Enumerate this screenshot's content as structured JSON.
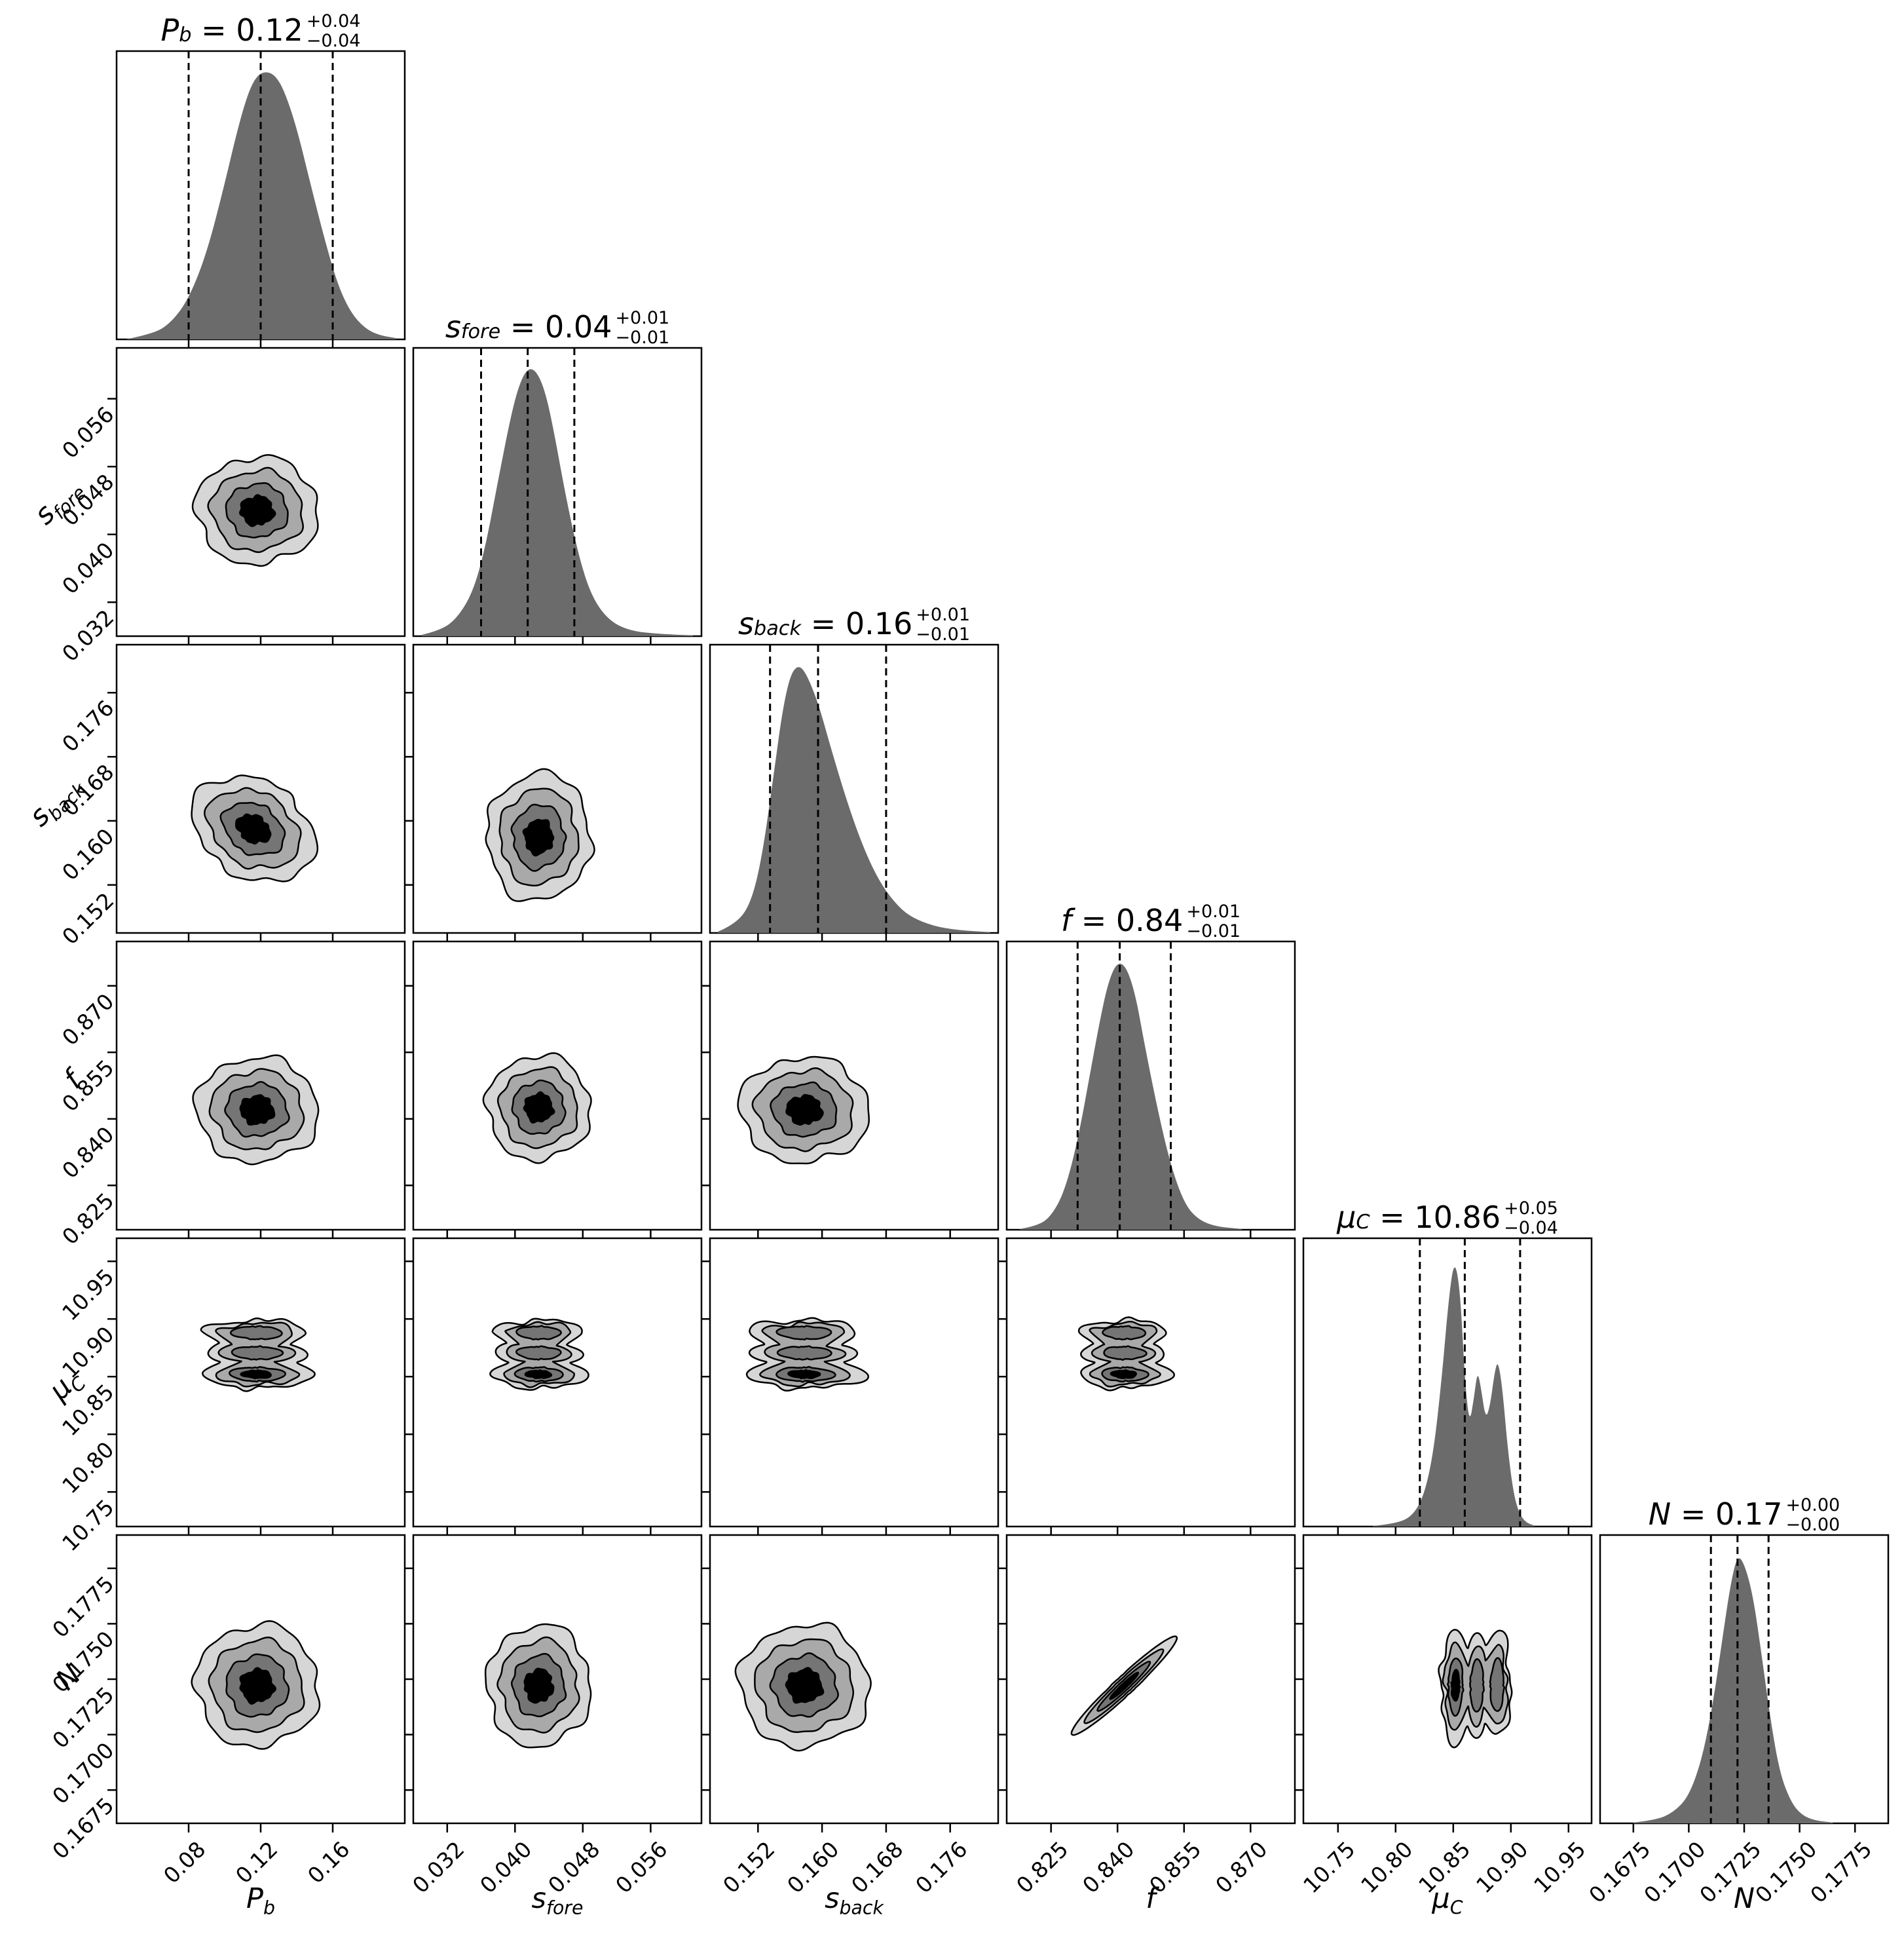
{
  "figure": {
    "kind": "mcmc-corner-plot",
    "background": "#ffffff"
  },
  "styles": {
    "hist_fill": "#6b6b6b",
    "contour_fills": [
      "#d6d6d6",
      "#a9a9a9",
      "#757575",
      "#000000"
    ],
    "contour_stroke": "#000000",
    "axis_color": "#000000"
  },
  "chart_data": {
    "type": "corner",
    "grid": 6,
    "parameters": [
      {
        "id": "P_b",
        "label": {
          "main": "P",
          "sub": "b"
        },
        "title": {
          "value": "0.12",
          "plus": "+0.04",
          "minus": "−0.04",
          "equals": "="
        },
        "range": [
          0.04,
          0.2
        ],
        "ticks": [
          {
            "v": 0.08,
            "label": "0.08"
          },
          {
            "v": 0.12,
            "label": "0.12"
          },
          {
            "v": 0.16,
            "label": "0.16"
          }
        ],
        "quantiles": [
          0.08,
          0.12,
          0.16
        ],
        "hist": [
          [
            0.045,
            0
          ],
          [
            0.06,
            0.02
          ],
          [
            0.07,
            0.06
          ],
          [
            0.08,
            0.15
          ],
          [
            0.09,
            0.32
          ],
          [
            0.1,
            0.58
          ],
          [
            0.107,
            0.78
          ],
          [
            0.113,
            0.92
          ],
          [
            0.118,
            0.985
          ],
          [
            0.123,
            1.0
          ],
          [
            0.128,
            0.985
          ],
          [
            0.133,
            0.93
          ],
          [
            0.14,
            0.79
          ],
          [
            0.148,
            0.57
          ],
          [
            0.156,
            0.36
          ],
          [
            0.163,
            0.2
          ],
          [
            0.17,
            0.1
          ],
          [
            0.178,
            0.04
          ],
          [
            0.186,
            0.015
          ],
          [
            0.195,
            0.005
          ]
        ]
      },
      {
        "id": "s_fore",
        "label": {
          "main": "s",
          "sub": "fore"
        },
        "title": {
          "value": "0.04",
          "plus": "+0.01",
          "minus": "−0.01",
          "equals": "="
        },
        "range": [
          0.028,
          0.062
        ],
        "ticks": [
          {
            "v": 0.032,
            "label": "0.032"
          },
          {
            "v": 0.04,
            "label": "0.040"
          },
          {
            "v": 0.048,
            "label": "0.048"
          },
          {
            "v": 0.056,
            "label": "0.056"
          }
        ],
        "quantiles": [
          0.036,
          0.0415,
          0.047
        ],
        "hist": [
          [
            0.029,
            0.005
          ],
          [
            0.031,
            0.02
          ],
          [
            0.033,
            0.06
          ],
          [
            0.035,
            0.16
          ],
          [
            0.0365,
            0.33
          ],
          [
            0.038,
            0.58
          ],
          [
            0.0395,
            0.82
          ],
          [
            0.0405,
            0.94
          ],
          [
            0.0415,
            1.0
          ],
          [
            0.0425,
            0.99
          ],
          [
            0.0435,
            0.92
          ],
          [
            0.0445,
            0.78
          ],
          [
            0.046,
            0.52
          ],
          [
            0.0475,
            0.3
          ],
          [
            0.049,
            0.15
          ],
          [
            0.051,
            0.06
          ],
          [
            0.0535,
            0.02
          ],
          [
            0.057,
            0.008
          ],
          [
            0.061,
            0.003
          ]
        ]
      },
      {
        "id": "s_back",
        "label": {
          "main": "s",
          "sub": "back"
        },
        "title": {
          "value": "0.16",
          "plus": "+0.01",
          "minus": "−0.01",
          "equals": "="
        },
        "range": [
          0.146,
          0.182
        ],
        "ticks": [
          {
            "v": 0.152,
            "label": "0.152"
          },
          {
            "v": 0.16,
            "label": "0.160"
          },
          {
            "v": 0.168,
            "label": "0.168"
          },
          {
            "v": 0.176,
            "label": "0.176"
          }
        ],
        "quantiles": [
          0.1535,
          0.1595,
          0.168
        ],
        "hist": [
          [
            0.147,
            0.005
          ],
          [
            0.149,
            0.03
          ],
          [
            0.151,
            0.1
          ],
          [
            0.1525,
            0.28
          ],
          [
            0.154,
            0.6
          ],
          [
            0.155,
            0.82
          ],
          [
            0.156,
            0.96
          ],
          [
            0.157,
            1.0
          ],
          [
            0.158,
            0.97
          ],
          [
            0.1595,
            0.86
          ],
          [
            0.161,
            0.7
          ],
          [
            0.163,
            0.5
          ],
          [
            0.165,
            0.33
          ],
          [
            0.167,
            0.2
          ],
          [
            0.169,
            0.115
          ],
          [
            0.171,
            0.06
          ],
          [
            0.174,
            0.025
          ],
          [
            0.177,
            0.01
          ],
          [
            0.181,
            0.003
          ]
        ]
      },
      {
        "id": "f",
        "label": {
          "main": "f",
          "sub": ""
        },
        "title": {
          "value": "0.84",
          "plus": "+0.01",
          "minus": "−0.01",
          "equals": "="
        },
        "range": [
          0.815,
          0.88
        ],
        "ticks": [
          {
            "v": 0.825,
            "label": "0.825"
          },
          {
            "v": 0.84,
            "label": "0.840"
          },
          {
            "v": 0.855,
            "label": "0.855"
          },
          {
            "v": 0.87,
            "label": "0.870"
          }
        ],
        "quantiles": [
          0.831,
          0.8405,
          0.852
        ],
        "hist": [
          [
            0.818,
            0.003
          ],
          [
            0.822,
            0.015
          ],
          [
            0.825,
            0.05
          ],
          [
            0.828,
            0.14
          ],
          [
            0.831,
            0.33
          ],
          [
            0.834,
            0.6
          ],
          [
            0.836,
            0.78
          ],
          [
            0.838,
            0.93
          ],
          [
            0.84,
            1.0
          ],
          [
            0.842,
            0.98
          ],
          [
            0.844,
            0.88
          ],
          [
            0.846,
            0.7
          ],
          [
            0.849,
            0.45
          ],
          [
            0.852,
            0.24
          ],
          [
            0.855,
            0.1
          ],
          [
            0.858,
            0.04
          ],
          [
            0.862,
            0.012
          ],
          [
            0.868,
            0.003
          ]
        ]
      },
      {
        "id": "mu_C",
        "label": {
          "main": "μ",
          "sub": "C"
        },
        "title": {
          "value": "10.86",
          "plus": "+0.05",
          "minus": "−0.04",
          "equals": "="
        },
        "range": [
          10.72,
          10.97
        ],
        "ticks": [
          {
            "v": 10.75,
            "label": "10.75"
          },
          {
            "v": 10.8,
            "label": "10.80"
          },
          {
            "v": 10.85,
            "label": "10.85"
          },
          {
            "v": 10.9,
            "label": "10.90"
          },
          {
            "v": 10.95,
            "label": "10.95"
          }
        ],
        "quantiles": [
          10.821,
          10.86,
          10.908
        ],
        "hist": [
          [
            10.78,
            0.002
          ],
          [
            10.8,
            0.01
          ],
          [
            10.815,
            0.04
          ],
          [
            10.825,
            0.12
          ],
          [
            10.833,
            0.28
          ],
          [
            10.84,
            0.55
          ],
          [
            10.846,
            0.85
          ],
          [
            10.851,
            1.0
          ],
          [
            10.856,
            0.88
          ],
          [
            10.86,
            0.55
          ],
          [
            10.864,
            0.38
          ],
          [
            10.868,
            0.48
          ],
          [
            10.871,
            0.58
          ],
          [
            10.874,
            0.52
          ],
          [
            10.878,
            0.4
          ],
          [
            10.882,
            0.45
          ],
          [
            10.886,
            0.58
          ],
          [
            10.889,
            0.62
          ],
          [
            10.893,
            0.5
          ],
          [
            10.897,
            0.3
          ],
          [
            10.902,
            0.13
          ],
          [
            10.907,
            0.05
          ],
          [
            10.913,
            0.015
          ],
          [
            10.92,
            0.004
          ]
        ]
      },
      {
        "id": "N",
        "label": {
          "main": "N",
          "sub": ""
        },
        "title": {
          "value": "0.17",
          "plus": "+0.00",
          "minus": "−0.00",
          "equals": "="
        },
        "range": [
          0.166,
          0.179
        ],
        "ticks": [
          {
            "v": 0.1675,
            "label": "0.1675"
          },
          {
            "v": 0.17,
            "label": "0.1700"
          },
          {
            "v": 0.1725,
            "label": "0.1725"
          },
          {
            "v": 0.175,
            "label": "0.1750"
          },
          {
            "v": 0.1775,
            "label": "0.1775"
          }
        ],
        "quantiles": [
          0.171,
          0.1722,
          0.1736
        ],
        "hist": [
          [
            0.1675,
            0.003
          ],
          [
            0.1685,
            0.012
          ],
          [
            0.1693,
            0.04
          ],
          [
            0.17,
            0.1
          ],
          [
            0.1706,
            0.24
          ],
          [
            0.1711,
            0.45
          ],
          [
            0.1715,
            0.68
          ],
          [
            0.1719,
            0.9
          ],
          [
            0.1722,
            1.0
          ],
          [
            0.1725,
            0.97
          ],
          [
            0.1729,
            0.85
          ],
          [
            0.1733,
            0.62
          ],
          [
            0.1737,
            0.38
          ],
          [
            0.1741,
            0.19
          ],
          [
            0.1746,
            0.08
          ],
          [
            0.1751,
            0.03
          ],
          [
            0.1757,
            0.01
          ],
          [
            0.1765,
            0.003
          ]
        ]
      }
    ],
    "contour_panels": [
      {
        "row": 1,
        "col": 0,
        "modes": [
          {
            "cx": 0.118,
            "cy": 0.0428,
            "rx": 0.034,
            "ry": 0.0063
          }
        ]
      },
      {
        "row": 2,
        "col": 0,
        "modes": [
          {
            "cx": 0.116,
            "cy": 0.159,
            "rx": 0.036,
            "ry": 0.006,
            "rot": 32
          }
        ]
      },
      {
        "row": 2,
        "col": 1,
        "modes": [
          {
            "cx": 0.0428,
            "cy": 0.158,
            "rx": 0.0061,
            "ry": 0.008
          }
        ]
      },
      {
        "row": 3,
        "col": 0,
        "modes": [
          {
            "cx": 0.118,
            "cy": 0.842,
            "rx": 0.034,
            "ry": 0.0118
          }
        ]
      },
      {
        "row": 3,
        "col": 1,
        "modes": [
          {
            "cx": 0.0428,
            "cy": 0.8425,
            "rx": 0.0061,
            "ry": 0.0118
          }
        ]
      },
      {
        "row": 3,
        "col": 2,
        "modes": [
          {
            "cx": 0.1578,
            "cy": 0.842,
            "rx": 0.0081,
            "ry": 0.0118
          }
        ]
      },
      {
        "row": 4,
        "col": 0,
        "modes": [
          {
            "cx": 0.118,
            "cy": 10.852,
            "rx": 0.031,
            "ry": 0.012,
            "w": 1
          },
          {
            "cx": 0.118,
            "cy": 10.8705,
            "rx": 0.031,
            "ry": 0.012,
            "w": 0.62
          },
          {
            "cx": 0.118,
            "cy": 10.888,
            "rx": 0.031,
            "ry": 0.012,
            "w": 0.65
          }
        ]
      },
      {
        "row": 4,
        "col": 1,
        "modes": [
          {
            "cx": 0.0428,
            "cy": 10.852,
            "rx": 0.0057,
            "ry": 0.012,
            "w": 1
          },
          {
            "cx": 0.0428,
            "cy": 10.8705,
            "rx": 0.0057,
            "ry": 0.012,
            "w": 0.62
          },
          {
            "cx": 0.0428,
            "cy": 10.888,
            "rx": 0.0057,
            "ry": 0.012,
            "w": 0.65
          }
        ]
      },
      {
        "row": 4,
        "col": 2,
        "modes": [
          {
            "cx": 0.1578,
            "cy": 10.852,
            "rx": 0.0074,
            "ry": 0.012,
            "w": 1
          },
          {
            "cx": 0.1578,
            "cy": 10.8705,
            "rx": 0.0074,
            "ry": 0.012,
            "w": 0.62
          },
          {
            "cx": 0.1578,
            "cy": 10.888,
            "rx": 0.0074,
            "ry": 0.012,
            "w": 0.65
          }
        ]
      },
      {
        "row": 4,
        "col": 3,
        "modes": [
          {
            "cx": 0.8415,
            "cy": 10.852,
            "rx": 0.0105,
            "ry": 0.012,
            "w": 1
          },
          {
            "cx": 0.8415,
            "cy": 10.8705,
            "rx": 0.0105,
            "ry": 0.012,
            "w": 0.62
          },
          {
            "cx": 0.8415,
            "cy": 10.888,
            "rx": 0.0105,
            "ry": 0.012,
            "w": 0.65
          }
        ]
      },
      {
        "row": 5,
        "col": 0,
        "modes": [
          {
            "cx": 0.118,
            "cy": 0.1722,
            "rx": 0.034,
            "ry": 0.00275
          }
        ]
      },
      {
        "row": 5,
        "col": 1,
        "modes": [
          {
            "cx": 0.0428,
            "cy": 0.1722,
            "rx": 0.0061,
            "ry": 0.00275
          }
        ]
      },
      {
        "row": 5,
        "col": 2,
        "modes": [
          {
            "cx": 0.1578,
            "cy": 0.1722,
            "rx": 0.0081,
            "ry": 0.00275
          }
        ]
      },
      {
        "row": 5,
        "col": 3,
        "wob": 0.015,
        "modes": [
          {
            "cx": 0.8415,
            "cy": 0.1722,
            "rx": 0.0165,
            "ry": 0.00042,
            "rot": -43
          }
        ]
      },
      {
        "row": 5,
        "col": 4,
        "modes": [
          {
            "cx": 10.852,
            "cy": 0.1722,
            "rx": 0.0125,
            "ry": 0.0026,
            "w": 1
          },
          {
            "cx": 10.8705,
            "cy": 0.1722,
            "rx": 0.0125,
            "ry": 0.0026,
            "w": 0.62
          },
          {
            "cx": 10.888,
            "cy": 0.1722,
            "rx": 0.0125,
            "ry": 0.0026,
            "w": 0.65
          }
        ]
      }
    ]
  }
}
